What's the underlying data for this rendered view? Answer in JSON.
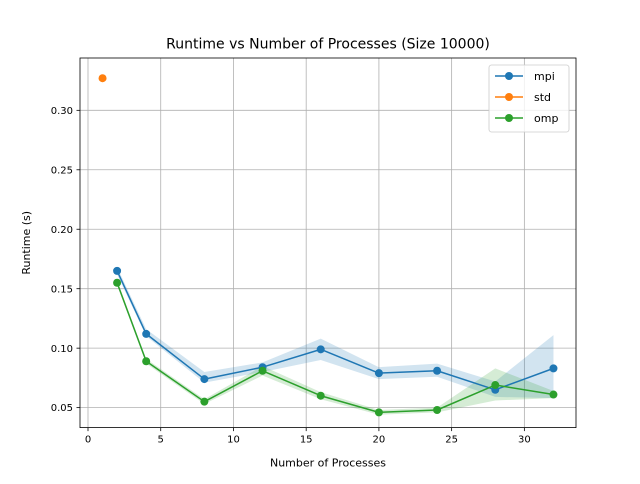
{
  "chart_data": {
    "type": "line",
    "title": "Runtime vs Number of Processes (Size 10000)",
    "xlabel": "Number of Processes",
    "ylabel": "Runtime (s)",
    "xlim": [
      -0.55,
      33.55
    ],
    "ylim": [
      0.0332,
      0.344
    ],
    "xticks": [
      0,
      5,
      10,
      15,
      20,
      25,
      30
    ],
    "yticks": [
      0.05,
      0.1,
      0.15,
      0.2,
      0.25,
      0.3
    ],
    "xtick_labels": [
      "0",
      "5",
      "10",
      "15",
      "20",
      "25",
      "30"
    ],
    "ytick_labels": [
      "0.05",
      "0.10",
      "0.15",
      "0.20",
      "0.25",
      "0.30"
    ],
    "grid": true,
    "legend_position": "top-right",
    "series": [
      {
        "name": "mpi",
        "color": "#1f77b4",
        "x": [
          2,
          4,
          8,
          12,
          16,
          20,
          24,
          28,
          32
        ],
        "values": [
          0.165,
          0.112,
          0.074,
          0.084,
          0.099,
          0.079,
          0.081,
          0.065,
          0.083
        ],
        "band_lower": [
          0.162,
          0.11,
          0.071,
          0.08,
          0.09,
          0.074,
          0.076,
          0.059,
          0.058
        ],
        "band_upper": [
          0.168,
          0.116,
          0.08,
          0.088,
          0.108,
          0.084,
          0.087,
          0.072,
          0.111
        ]
      },
      {
        "name": "std",
        "color": "#ff7f0e",
        "x": [
          1
        ],
        "values": [
          0.327
        ],
        "band_lower": [
          0.327
        ],
        "band_upper": [
          0.327
        ]
      },
      {
        "name": "omp",
        "color": "#2ca02c",
        "x": [
          2,
          4,
          8,
          12,
          16,
          20,
          24,
          28,
          32
        ],
        "values": [
          0.155,
          0.089,
          0.055,
          0.081,
          0.06,
          0.046,
          0.048,
          0.069,
          0.061
        ],
        "band_lower": [
          0.153,
          0.087,
          0.053,
          0.077,
          0.057,
          0.044,
          0.046,
          0.056,
          0.058
        ],
        "band_upper": [
          0.157,
          0.091,
          0.057,
          0.085,
          0.063,
          0.048,
          0.05,
          0.083,
          0.064
        ]
      }
    ]
  }
}
